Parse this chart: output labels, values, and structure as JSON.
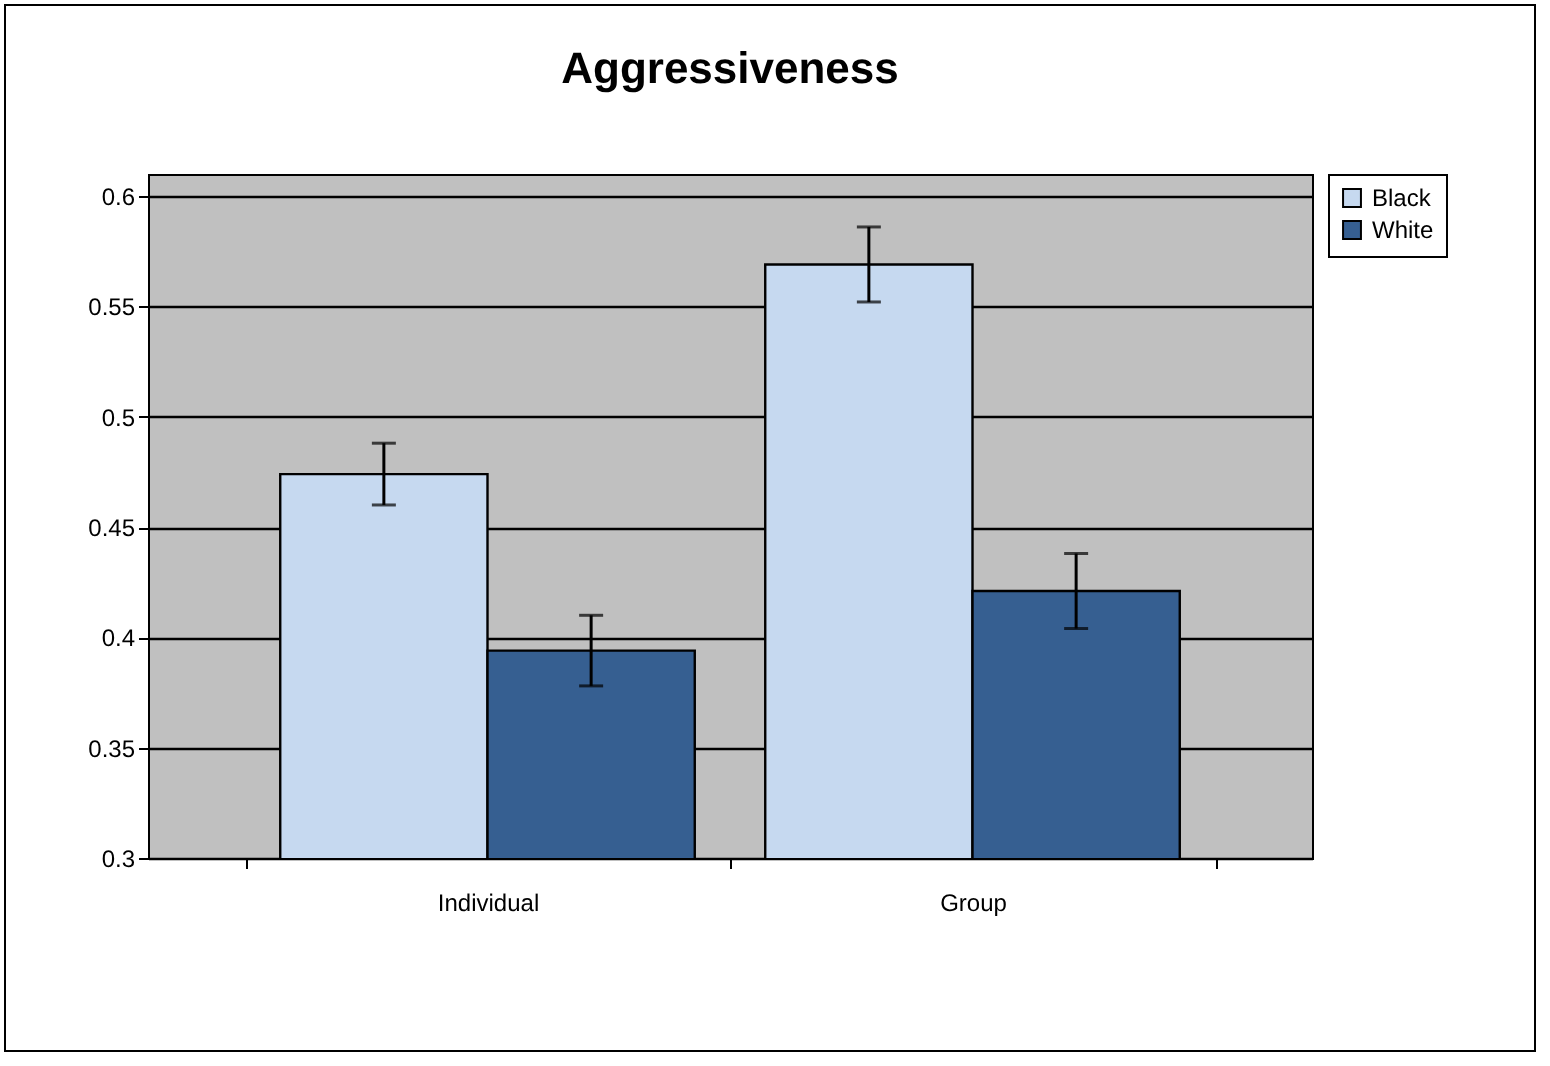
{
  "chart_data": {
    "type": "bar",
    "title": "Aggressiveness",
    "categories": [
      "Individual",
      "Group"
    ],
    "series": [
      {
        "name": "Black",
        "color": "#c6d9f0",
        "values": [
          0.474,
          0.569
        ],
        "errors": [
          0.014,
          0.017
        ]
      },
      {
        "name": "White",
        "color": "#365f91",
        "values": [
          0.394,
          0.421
        ],
        "errors": [
          0.016,
          0.017
        ]
      }
    ],
    "ylim": [
      0.3,
      0.61
    ],
    "yticks": [
      0.3,
      0.35,
      0.4,
      0.45,
      0.5,
      0.55,
      0.6
    ],
    "grid": "y",
    "legend": "right"
  }
}
